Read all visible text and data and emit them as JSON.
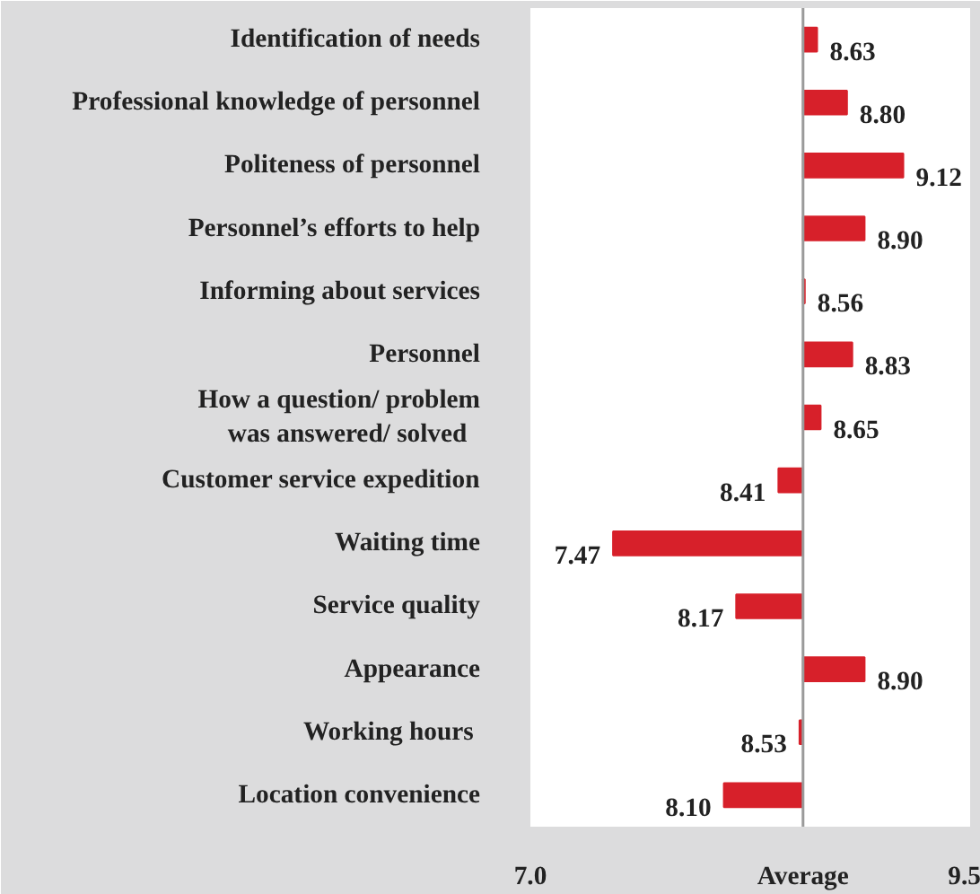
{
  "chart_data": {
    "type": "bar",
    "orientation": "horizontal",
    "categories": [
      "Identification of needs",
      "Professional knowledge of personnel",
      "Politeness of personnel",
      "Personnel’s efforts to help",
      "Informing about services",
      "Personnel",
      "How a question/ problem\n  was answered/ solved",
      "Customer service expedition",
      "Waiting time",
      "Service quality",
      "Appearance",
      "Working hours ",
      "Location convenience"
    ],
    "base": [
      8.55,
      8.55,
      8.55,
      8.55,
      8.55,
      8.55,
      8.55,
      8.55,
      8.55,
      8.55,
      8.55,
      8.55,
      8.55
    ],
    "values": [
      0.08,
      0.25,
      0.57,
      0.35,
      0.01,
      0.28,
      0.1,
      -0.14,
      -1.08,
      -0.38,
      0.35,
      -0.02,
      -0.45
    ],
    "value_labels": [
      "8.63",
      "8.80",
      "9.12",
      "8.90",
      "8.56",
      "8.83",
      "8.65",
      "8.41",
      "7.47",
      "8.17",
      "8.90",
      "8.53",
      "8.10"
    ],
    "color": "#d7202a",
    "xlim": [
      7.0,
      9.5
    ],
    "xticks": [
      {
        "value": 7.0,
        "label": "7.0"
      },
      {
        "value": 8.55,
        "label": "Average"
      },
      9.5
    ],
    "ref_lines": [
      {
        "axis": "x",
        "value": 8.55,
        "color": "#9a9a9a"
      }
    ],
    "grid": false
  }
}
